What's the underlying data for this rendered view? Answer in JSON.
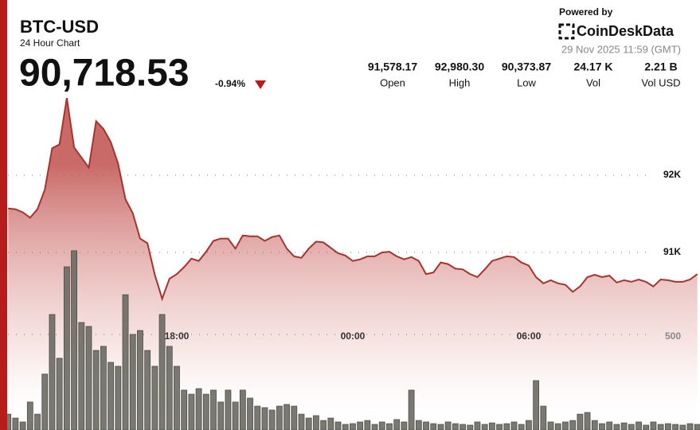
{
  "header": {
    "title": "BTC-USD",
    "subtitle": "24 Hour Chart",
    "price": "90,718.53",
    "change": "-0.94%",
    "powered_by": "Powered by",
    "brand_bold": "CoinDesk",
    "brand_light": "Data",
    "timestamp": "29 Nov 2025 11:59 (GMT)",
    "stats": [
      {
        "value": "91,578.17",
        "label": "Open"
      },
      {
        "value": "92,980.30",
        "label": "High"
      },
      {
        "value": "90,373.87",
        "label": "Low"
      },
      {
        "value": "24.17 K",
        "label": "Vol"
      },
      {
        "value": "2.21 B",
        "label": "Vol USD"
      }
    ]
  },
  "chart_data": {
    "type": "area",
    "color": "#a8322c",
    "x": [
      0.25,
      0.5,
      0.75,
      1,
      1.25,
      1.5,
      1.75,
      2,
      2.25,
      2.5,
      2.75,
      3,
      3.25,
      3.5,
      3.75,
      4,
      4.25,
      4.5,
      4.75,
      5,
      5.25,
      5.5,
      5.75,
      6,
      6.25,
      6.5,
      6.75,
      7,
      7.25,
      7.5,
      7.75,
      8,
      8.25,
      8.5,
      8.75,
      9,
      9.25,
      9.5,
      9.75,
      10,
      10.25,
      10.5,
      10.75,
      11,
      11.25,
      11.5,
      11.75,
      12,
      12.25,
      12.5,
      12.75,
      13,
      13.25,
      13.5,
      13.75,
      14,
      14.25,
      14.5,
      14.75,
      15,
      15.25,
      15.5,
      15.75,
      16,
      16.25,
      16.5,
      16.75,
      17,
      17.25,
      17.5,
      17.75,
      18,
      18.25,
      18.5,
      18.75,
      19,
      19.25,
      19.5,
      19.75,
      20,
      20.25,
      20.5,
      20.75,
      21,
      21.25,
      21.5,
      21.75,
      22,
      22.25,
      22.5,
      22.75,
      23,
      23.25,
      23.5,
      23.75
    ],
    "values": [
      91570,
      91560,
      91520,
      91450,
      91560,
      91810,
      92350,
      92400,
      93000,
      92360,
      92230,
      92100,
      92700,
      92600,
      92430,
      92150,
      91690,
      91510,
      91180,
      91120,
      90710,
      90400,
      90660,
      90720,
      90810,
      90920,
      90890,
      91010,
      91150,
      91180,
      91180,
      91050,
      91220,
      91210,
      91210,
      91150,
      91200,
      91220,
      91050,
      90950,
      90930,
      91050,
      91140,
      91130,
      91060,
      90990,
      90960,
      90890,
      90910,
      90950,
      90950,
      91000,
      91010,
      90950,
      90910,
      90940,
      90890,
      90720,
      90740,
      90870,
      90850,
      90790,
      90780,
      90720,
      90680,
      90780,
      90890,
      90920,
      90950,
      90940,
      90870,
      90830,
      90680,
      90600,
      90640,
      90600,
      90580,
      90490,
      90560,
      90680,
      90710,
      90680,
      90700,
      90610,
      90640,
      90620,
      90650,
      90620,
      90560,
      90650,
      90640,
      90620,
      90620,
      90650,
      90720
    ],
    "xlim": [
      0,
      23.84
    ],
    "xticks": [
      {
        "value": 6,
        "label": "18:00"
      },
      {
        "value": 12,
        "label": "00:00"
      },
      {
        "value": 18,
        "label": "06:00"
      }
    ],
    "ylim": [
      88700,
      94270
    ],
    "yticks": [
      {
        "value": 91000,
        "label": "91K"
      },
      {
        "value": 92000,
        "label": "92K"
      }
    ],
    "volume": {
      "color": "#6b6b63",
      "ylim": [
        0,
        2308
      ],
      "yticks": [
        500
      ],
      "values": [
        85,
        64,
        43,
        150,
        85,
        300,
        620,
        385,
        876,
        962,
        577,
        556,
        427,
        449,
        363,
        342,
        726,
        513,
        534,
        427,
        342,
        620,
        449,
        342,
        214,
        192,
        222,
        192,
        214,
        150,
        214,
        150,
        214,
        171,
        128,
        120,
        107,
        128,
        137,
        128,
        85,
        64,
        77,
        51,
        64,
        43,
        30,
        34,
        43,
        51,
        30,
        43,
        34,
        56,
        43,
        214,
        51,
        43,
        34,
        30,
        43,
        34,
        30,
        26,
        43,
        30,
        38,
        30,
        34,
        43,
        30,
        51,
        265,
        128,
        43,
        34,
        43,
        51,
        85,
        94,
        51,
        34,
        43,
        30,
        38,
        30,
        43,
        26,
        43,
        30,
        34,
        30,
        26,
        34,
        30
      ]
    }
  }
}
